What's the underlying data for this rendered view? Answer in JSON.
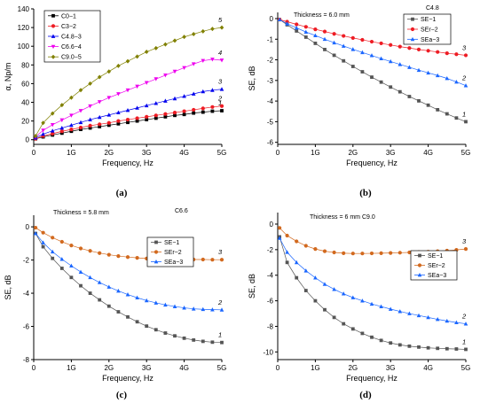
{
  "chart_data": [
    {
      "panel": "(a)",
      "type": "line",
      "xlabel": "Frequency, Hz",
      "ylabel": "α, Np/m",
      "x_ticks": [
        "0",
        "1G",
        "2G",
        "3G",
        "4G",
        "5G"
      ],
      "y_ticks": [
        "0",
        "20",
        "40",
        "60",
        "80",
        "100",
        "120",
        "140"
      ],
      "xlim": [
        0,
        5
      ],
      "ylim": [
        -5,
        140
      ],
      "legend_position": "top-left",
      "x": [
        0.05,
        0.25,
        0.5,
        0.75,
        1.0,
        1.25,
        1.5,
        1.75,
        2.0,
        2.25,
        2.5,
        2.75,
        3.0,
        3.25,
        3.5,
        3.75,
        4.0,
        4.25,
        4.5,
        4.75,
        5.0
      ],
      "series": [
        {
          "name": "C0−1",
          "end_label": "1",
          "color": "#000000",
          "marker": "square",
          "values": [
            1,
            3,
            5,
            7,
            9,
            11,
            12.5,
            14,
            15.5,
            17,
            18.5,
            20,
            21.5,
            23,
            24.5,
            26,
            27,
            28.5,
            29.5,
            30.5,
            31
          ]
        },
        {
          "name": "C3−2",
          "end_label": "2",
          "color": "#ee1c24",
          "marker": "circle",
          "values": [
            1,
            4,
            6.5,
            9,
            11,
            13,
            15,
            16.5,
            18,
            20,
            21.5,
            23,
            24.5,
            26,
            27.5,
            29,
            30.5,
            32,
            33.5,
            35,
            36
          ]
        },
        {
          "name": "C4.8−3",
          "end_label": "3",
          "color": "#0000ee",
          "marker": "triangle-up",
          "values": [
            2,
            6,
            9.5,
            12.5,
            15.5,
            18.5,
            21.5,
            24,
            26.5,
            29,
            31.5,
            34,
            36.5,
            39,
            41.5,
            44,
            46.5,
            49,
            51.5,
            53,
            54
          ]
        },
        {
          "name": "C6.6−4",
          "end_label": "4",
          "color": "#ee00ee",
          "marker": "triangle-down",
          "values": [
            3,
            10,
            16,
            21,
            26,
            31,
            36,
            40.5,
            45,
            49,
            53,
            57,
            61,
            65,
            69,
            73,
            77,
            81,
            84.5,
            86,
            85
          ]
        },
        {
          "name": "C9.0−5",
          "end_label": "5",
          "color": "#808000",
          "marker": "diamond",
          "values": [
            4,
            18,
            28,
            37,
            45,
            53,
            60,
            67,
            73,
            79,
            84,
            89,
            94,
            98,
            102,
            106,
            110,
            113,
            116,
            118.5,
            120
          ]
        }
      ]
    },
    {
      "panel": "(b)",
      "type": "line",
      "xlabel": "Frequency, Hz",
      "ylabel": "SE, dB",
      "x_ticks": [
        "0",
        "1G",
        "2G",
        "3G",
        "4G",
        "5G"
      ],
      "y_ticks": [
        "0",
        "-1",
        "-2",
        "-3",
        "-4",
        "-5",
        "-6"
      ],
      "xlim": [
        0,
        5
      ],
      "ylim": [
        -6.1,
        0.3
      ],
      "annotation": "Thickness = 6.0 mm",
      "sample": "C4.8",
      "legend_position": "top-right",
      "x": [
        0.05,
        0.25,
        0.5,
        0.75,
        1.0,
        1.25,
        1.5,
        1.75,
        2.0,
        2.25,
        2.5,
        2.75,
        3.0,
        3.25,
        3.5,
        3.75,
        4.0,
        4.25,
        4.5,
        4.75,
        5.0
      ],
      "series": [
        {
          "name": "SE−1",
          "end_label": "1",
          "color": "#555555",
          "marker": "square",
          "values": [
            -0.05,
            -0.3,
            -0.6,
            -0.9,
            -1.2,
            -1.5,
            -1.78,
            -2.05,
            -2.32,
            -2.58,
            -2.84,
            -3.08,
            -3.32,
            -3.55,
            -3.78,
            -3.99,
            -4.2,
            -4.42,
            -4.62,
            -4.82,
            -5.0
          ]
        },
        {
          "name": "SEr−2",
          "end_label": "3",
          "color": "#ee1c24",
          "marker": "circle",
          "values": [
            -0.05,
            -0.15,
            -0.28,
            -0.4,
            -0.52,
            -0.63,
            -0.74,
            -0.84,
            -0.94,
            -1.03,
            -1.12,
            -1.2,
            -1.28,
            -1.36,
            -1.43,
            -1.5,
            -1.56,
            -1.62,
            -1.68,
            -1.73,
            -1.78
          ]
        },
        {
          "name": "SEa−3",
          "end_label": "2",
          "color": "#1a66ff",
          "marker": "triangle-up",
          "values": [
            -0.05,
            -0.25,
            -0.45,
            -0.65,
            -0.82,
            -1.0,
            -1.17,
            -1.33,
            -1.49,
            -1.64,
            -1.79,
            -1.94,
            -2.08,
            -2.22,
            -2.36,
            -2.5,
            -2.63,
            -2.76,
            -2.9,
            -3.07,
            -3.25
          ]
        }
      ]
    },
    {
      "panel": "(c)",
      "type": "line",
      "xlabel": "Frequency, Hz",
      "ylabel": "SE, dB",
      "x_ticks": [
        "0",
        "1G",
        "2G",
        "3G",
        "4G",
        "5G"
      ],
      "y_ticks": [
        "0",
        "-2",
        "-4",
        "-6",
        "-8"
      ],
      "xlim": [
        0,
        5
      ],
      "ylim": [
        -8,
        0.7
      ],
      "annotation": "Thickness = 5.8 mm",
      "sample": "C6.6",
      "legend_position": "right",
      "x": [
        0.05,
        0.25,
        0.5,
        0.75,
        1.0,
        1.25,
        1.5,
        1.75,
        2.0,
        2.25,
        2.5,
        2.75,
        3.0,
        3.25,
        3.5,
        3.75,
        4.0,
        4.25,
        4.5,
        4.75,
        5.0
      ],
      "series": [
        {
          "name": "SE−1",
          "end_label": "1",
          "color": "#555555",
          "marker": "square",
          "values": [
            -0.4,
            -1.2,
            -1.9,
            -2.5,
            -3.05,
            -3.55,
            -4.0,
            -4.4,
            -4.78,
            -5.12,
            -5.43,
            -5.72,
            -5.98,
            -6.2,
            -6.4,
            -6.57,
            -6.71,
            -6.82,
            -6.9,
            -6.95,
            -6.97
          ]
        },
        {
          "name": "SEr−2",
          "end_label": "3",
          "color": "#d2691e",
          "marker": "circle",
          "values": [
            -0.05,
            -0.35,
            -0.65,
            -0.9,
            -1.12,
            -1.3,
            -1.45,
            -1.58,
            -1.68,
            -1.76,
            -1.82,
            -1.87,
            -1.91,
            -1.93,
            -1.95,
            -1.96,
            -1.97,
            -1.97,
            -1.97,
            -1.98,
            -1.98
          ]
        },
        {
          "name": "SEa−3",
          "end_label": "2",
          "color": "#1a66ff",
          "marker": "triangle-up",
          "values": [
            -0.4,
            -0.95,
            -1.5,
            -1.95,
            -2.35,
            -2.72,
            -3.05,
            -3.35,
            -3.62,
            -3.86,
            -4.08,
            -4.27,
            -4.44,
            -4.58,
            -4.7,
            -4.8,
            -4.88,
            -4.94,
            -4.97,
            -4.99,
            -5.0
          ]
        }
      ]
    },
    {
      "panel": "(d)",
      "type": "line",
      "xlabel": "Frequency, Hz",
      "ylabel": "SE, dB",
      "x_ticks": [
        "0",
        "1G",
        "2G",
        "3G",
        "4G",
        "5G"
      ],
      "y_ticks": [
        "0",
        "-2",
        "-4",
        "-6",
        "-8",
        "-10"
      ],
      "xlim": [
        0,
        5
      ],
      "ylim": [
        -10.6,
        0.9
      ],
      "annotation": "Thickness = 6 mm",
      "sample": "C9.0",
      "legend_position": "right",
      "x": [
        0.05,
        0.25,
        0.5,
        0.75,
        1.0,
        1.25,
        1.5,
        1.75,
        2.0,
        2.25,
        2.5,
        2.75,
        3.0,
        3.25,
        3.5,
        3.75,
        4.0,
        4.25,
        4.5,
        4.75,
        5.0
      ],
      "series": [
        {
          "name": "SE−1",
          "end_label": "1",
          "color": "#555555",
          "marker": "square",
          "values": [
            -1.0,
            -3.0,
            -4.2,
            -5.2,
            -6.0,
            -6.7,
            -7.3,
            -7.8,
            -8.2,
            -8.55,
            -8.85,
            -9.1,
            -9.3,
            -9.45,
            -9.55,
            -9.62,
            -9.68,
            -9.72,
            -9.75,
            -9.77,
            -9.8
          ]
        },
        {
          "name": "SEr−2",
          "end_label": "3",
          "color": "#d2691e",
          "marker": "circle",
          "values": [
            -0.3,
            -0.9,
            -1.35,
            -1.7,
            -1.95,
            -2.12,
            -2.22,
            -2.28,
            -2.3,
            -2.3,
            -2.29,
            -2.28,
            -2.26,
            -2.24,
            -2.22,
            -2.19,
            -2.16,
            -2.12,
            -2.08,
            -2.02,
            -1.95
          ]
        },
        {
          "name": "SEa−3",
          "end_label": "2",
          "color": "#1a66ff",
          "marker": "triangle-up",
          "values": [
            -1.1,
            -2.2,
            -3.0,
            -3.65,
            -4.2,
            -4.7,
            -5.1,
            -5.45,
            -5.75,
            -6.0,
            -6.25,
            -6.45,
            -6.65,
            -6.83,
            -7.0,
            -7.15,
            -7.3,
            -7.45,
            -7.58,
            -7.7,
            -7.8
          ]
        }
      ]
    }
  ]
}
